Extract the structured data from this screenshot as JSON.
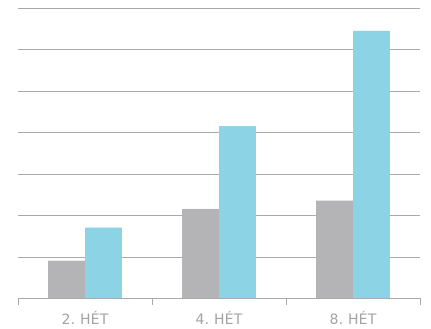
{
  "chart_data": {
    "type": "bar",
    "categories": [
      "2. HÉT",
      "4. HÉT",
      "8. HÉT"
    ],
    "series": [
      {
        "values": [
          0.9,
          2.15,
          2.35
        ],
        "color": "#b4b4b6"
      },
      {
        "values": [
          1.7,
          4.15,
          6.45
        ],
        "color": "#8dd3e6"
      }
    ],
    "ylim": [
      0,
      7
    ],
    "grid": true,
    "gridline_step": 1,
    "axis_color": "#aaaaaa",
    "grid_color": "#aaaaaa",
    "title": "",
    "xlabel": "",
    "ylabel": ""
  }
}
